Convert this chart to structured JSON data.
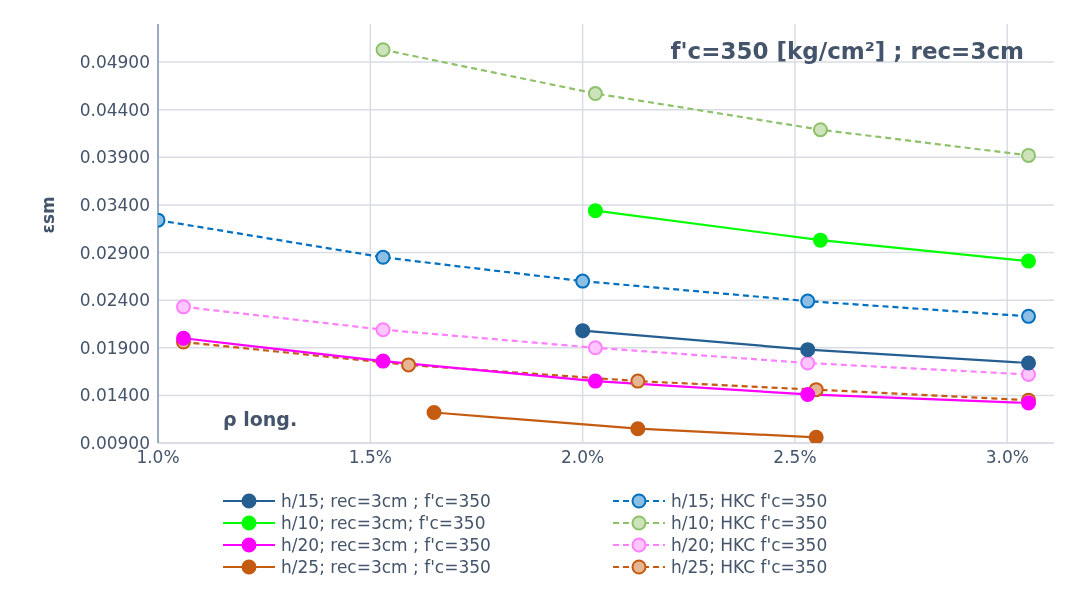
{
  "chart_data": {
    "type": "line",
    "title": "f'c=350 [kg/cm²] ; rec=3cm",
    "xlabel": "ρ long.",
    "ylabel": "εsm",
    "xlim": [
      1.0,
      3.11
    ],
    "xticks": [
      {
        "value": 1.0,
        "label": "1.0%"
      },
      {
        "value": 1.5,
        "label": "1.5%"
      },
      {
        "value": 2.0,
        "label": "2.0%"
      },
      {
        "value": 2.5,
        "label": "2.5%"
      },
      {
        "value": 3.0,
        "label": "3.0%"
      }
    ],
    "ylim": [
      0.009,
      0.053
    ],
    "yticks": [
      {
        "value": 0.009,
        "label": "0.00900"
      },
      {
        "value": 0.014,
        "label": "0.01400"
      },
      {
        "value": 0.019,
        "label": "0.01900"
      },
      {
        "value": 0.024,
        "label": "0.02400"
      },
      {
        "value": 0.029,
        "label": "0.02900"
      },
      {
        "value": 0.034,
        "label": "0.03400"
      },
      {
        "value": 0.039,
        "label": "0.03900"
      },
      {
        "value": 0.044,
        "label": "0.04400"
      },
      {
        "value": 0.049,
        "label": "0.04900"
      }
    ],
    "grid": true,
    "legend": "bottom",
    "marker": "circle",
    "series": [
      {
        "name": "h/15; rec=3cm ; f'c=350",
        "color": "#255e91",
        "line_style": "solid",
        "x": [
          2.0,
          2.53,
          3.05
        ],
        "values": [
          0.0208,
          0.0188,
          0.0174
        ]
      },
      {
        "name": "h/15; HKC f'c=350",
        "color": "#0070c0",
        "line_style": "dashed",
        "x": [
          1.0,
          1.53,
          2.0,
          2.53,
          3.05
        ],
        "values": [
          0.0324,
          0.0285,
          0.026,
          0.0239,
          0.0223
        ]
      },
      {
        "name": "h/10; rec=3cm; f'c=350",
        "color": "#00ff00",
        "line_style": "solid",
        "x": [
          2.03,
          2.56,
          3.05
        ],
        "values": [
          0.0334,
          0.0303,
          0.0281
        ]
      },
      {
        "name": "h/10; HKC f'c=350",
        "color": "#8fc16b",
        "line_style": "dashed",
        "x": [
          1.53,
          2.03,
          2.56,
          3.05
        ],
        "values": [
          0.0503,
          0.0457,
          0.0419,
          0.0392
        ]
      },
      {
        "name": "h/20; rec=3cm ; f'c=350",
        "color": "#ff00ff",
        "line_style": "solid",
        "x": [
          1.06,
          1.53,
          2.03,
          2.53,
          3.05
        ],
        "values": [
          0.02,
          0.0176,
          0.0155,
          0.0141,
          0.0132
        ]
      },
      {
        "name": "h/20; HKC f'c=350",
        "color": "#ff80ff",
        "line_style": "dashed",
        "x": [
          1.06,
          1.53,
          2.03,
          2.53,
          3.05
        ],
        "values": [
          0.0233,
          0.0209,
          0.019,
          0.0174,
          0.0162
        ]
      },
      {
        "name": "h/25; rec=3cm ; f'c=350",
        "color": "#c55a11",
        "line_style": "solid",
        "x": [
          1.65,
          2.13,
          2.55
        ],
        "values": [
          0.0122,
          0.0105,
          0.0096
        ]
      },
      {
        "name": "h/25; HKC f'c=350",
        "color": "#c55a11",
        "line_style": "dashed",
        "x": [
          1.06,
          1.59,
          2.13,
          2.55,
          3.05
        ],
        "values": [
          0.0196,
          0.0172,
          0.0155,
          0.0146,
          0.0135
        ]
      }
    ]
  }
}
